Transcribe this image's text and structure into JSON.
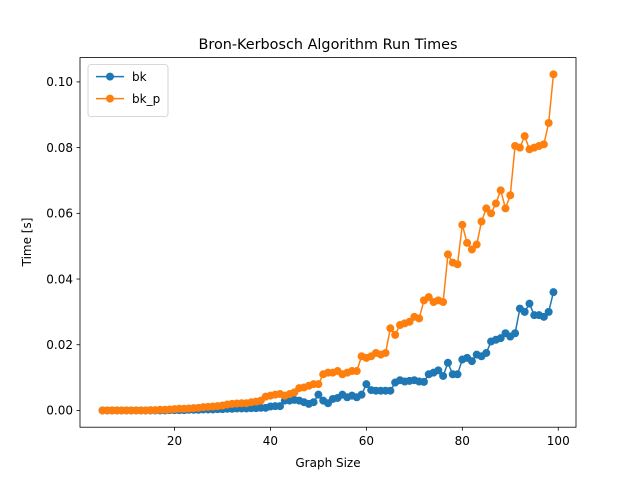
{
  "chart_data": {
    "type": "line",
    "title": "Bron-Kerbosch Algorithm Run Times",
    "xlabel": "Graph Size",
    "ylabel": "Time [s]",
    "x": [
      5,
      6,
      7,
      8,
      9,
      10,
      11,
      12,
      13,
      14,
      15,
      16,
      17,
      18,
      19,
      20,
      21,
      22,
      23,
      24,
      25,
      26,
      27,
      28,
      29,
      30,
      31,
      32,
      33,
      34,
      35,
      36,
      37,
      38,
      39,
      40,
      41,
      42,
      43,
      44,
      45,
      46,
      47,
      48,
      49,
      50,
      51,
      52,
      53,
      54,
      55,
      56,
      57,
      58,
      59,
      60,
      61,
      62,
      63,
      64,
      65,
      66,
      67,
      68,
      69,
      70,
      71,
      72,
      73,
      74,
      75,
      76,
      77,
      78,
      79,
      80,
      81,
      82,
      83,
      84,
      85,
      86,
      87,
      88,
      89,
      90,
      91,
      92,
      93,
      94,
      95,
      96,
      97,
      98,
      99
    ],
    "series": [
      {
        "name": "bk",
        "color": "#1f77b4",
        "values": [
          0,
          0,
          0,
          0,
          0,
          0,
          0,
          0,
          0,
          0,
          0,
          0,
          0,
          0,
          0.0001,
          0.0001,
          0.0001,
          0.0001,
          0.0002,
          0.0002,
          0.0002,
          0.0003,
          0.0003,
          0.0003,
          0.0004,
          0.0004,
          0.0005,
          0.0005,
          0.0006,
          0.0006,
          0.0006,
          0.0007,
          0.0007,
          0.0008,
          0.0008,
          0.0012,
          0.0013,
          0.0013,
          0.003,
          0.003,
          0.0032,
          0.003,
          0.0025,
          0.002,
          0.0025,
          0.0048,
          0.003,
          0.0022,
          0.0035,
          0.0038,
          0.0048,
          0.004,
          0.0045,
          0.004,
          0.0048,
          0.008,
          0.0062,
          0.006,
          0.006,
          0.006,
          0.006,
          0.0085,
          0.0092,
          0.0088,
          0.009,
          0.0092,
          0.0088,
          0.0087,
          0.011,
          0.0115,
          0.0122,
          0.0105,
          0.0145,
          0.011,
          0.011,
          0.0155,
          0.016,
          0.015,
          0.017,
          0.0165,
          0.0175,
          0.021,
          0.0215,
          0.022,
          0.0235,
          0.0225,
          0.0235,
          0.031,
          0.03,
          0.0325,
          0.029,
          0.029,
          0.0285,
          0.03,
          0.036
        ]
      },
      {
        "name": "bk_p",
        "color": "#ff7f0e",
        "values": [
          0,
          0,
          0,
          0,
          0,
          0,
          0,
          0,
          0,
          0,
          0.0001,
          0.0001,
          0.0002,
          0.0002,
          0.0003,
          0.0004,
          0.0005,
          0.0005,
          0.0006,
          0.0007,
          0.0008,
          0.001,
          0.0011,
          0.0012,
          0.0013,
          0.0015,
          0.0018,
          0.002,
          0.0021,
          0.0022,
          0.0022,
          0.0025,
          0.0027,
          0.003,
          0.0042,
          0.0045,
          0.0048,
          0.005,
          0.0045,
          0.005,
          0.0055,
          0.0068,
          0.007,
          0.0075,
          0.008,
          0.008,
          0.011,
          0.0115,
          0.0115,
          0.012,
          0.011,
          0.0115,
          0.012,
          0.012,
          0.0165,
          0.016,
          0.0165,
          0.0175,
          0.017,
          0.0175,
          0.025,
          0.023,
          0.026,
          0.0265,
          0.027,
          0.0285,
          0.028,
          0.0335,
          0.0345,
          0.033,
          0.0335,
          0.033,
          0.0475,
          0.045,
          0.0445,
          0.0565,
          0.051,
          0.049,
          0.0505,
          0.0575,
          0.0615,
          0.06,
          0.063,
          0.067,
          0.0615,
          0.0655,
          0.0805,
          0.08,
          0.0835,
          0.0795,
          0.08,
          0.0805,
          0.081,
          0.0875,
          0.1023
        ]
      }
    ],
    "xlim": [
      0.3,
      103.7
    ],
    "xticks": [
      20,
      40,
      60,
      80,
      100
    ],
    "ylim": [
      -0.0051,
      0.1074
    ],
    "yticks": [
      {
        "value": 0,
        "label": "0.00"
      },
      {
        "value": 0.02,
        "label": "0.02"
      },
      {
        "value": 0.04,
        "label": "0.04"
      },
      {
        "value": 0.06,
        "label": "0.06"
      },
      {
        "value": 0.08,
        "label": "0.08"
      },
      {
        "value": 0.1,
        "label": "0.10"
      }
    ],
    "legend": "upper left"
  }
}
